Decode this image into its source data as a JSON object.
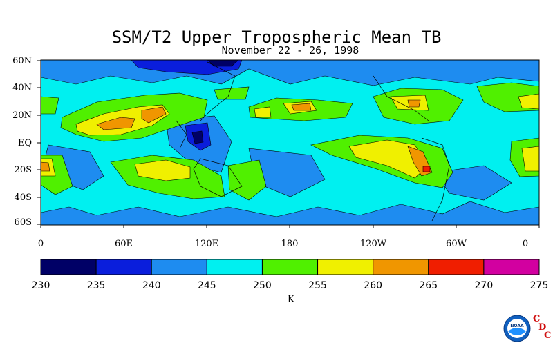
{
  "header": {
    "title": "SSM/T2 Upper Tropospheric Mean TB",
    "subtitle": "November 22 - 26, 1998"
  },
  "map": {
    "lat_ticks": [
      "60N",
      "40N",
      "20N",
      "EQ",
      "20S",
      "40S",
      "60S"
    ],
    "lon_ticks": [
      "0",
      "60E",
      "120E",
      "180",
      "120W",
      "60W",
      "0"
    ]
  },
  "colorbar": {
    "ticks": [
      "230",
      "235",
      "240",
      "245",
      "250",
      "255",
      "260",
      "265",
      "270",
      "275"
    ],
    "colors": [
      "#000066",
      "#0a1edc",
      "#1e8cf0",
      "#00f0f0",
      "#50f000",
      "#f0f000",
      "#f09600",
      "#f01e00",
      "#d200a0"
    ],
    "units": "K"
  },
  "logo": {
    "noaa_text": "NOAA",
    "letters": [
      "C",
      "D",
      "C"
    ]
  }
}
